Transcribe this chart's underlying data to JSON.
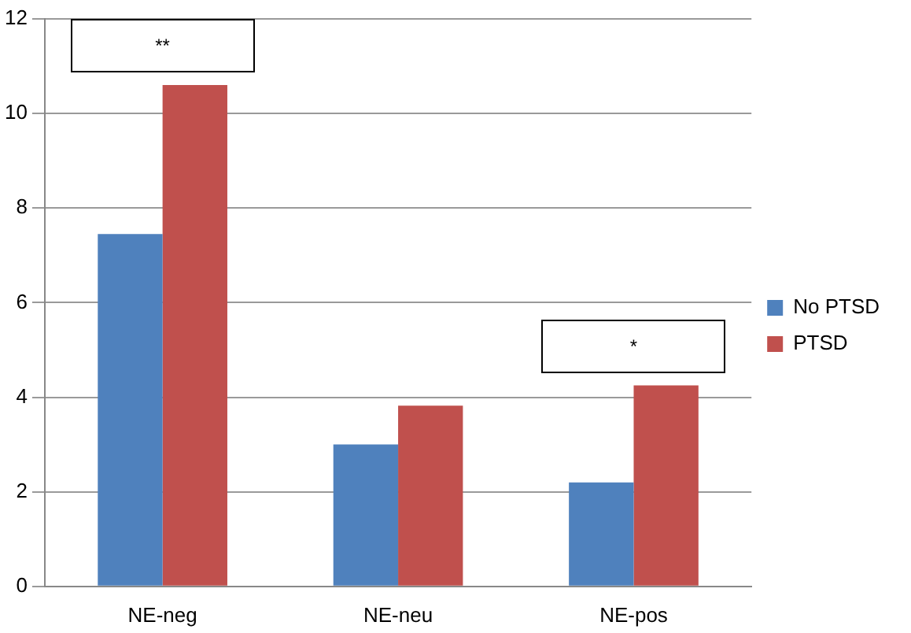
{
  "chart_data": {
    "type": "bar",
    "categories": [
      "NE-neg",
      "NE-neu",
      "NE-pos"
    ],
    "series": [
      {
        "name": "No PTSD",
        "color": "#4f81bd",
        "values": [
          7.45,
          3.0,
          2.2
        ]
      },
      {
        "name": "PTSD",
        "color": "#c0504d",
        "values": [
          10.6,
          3.82,
          4.25
        ]
      }
    ],
    "ylim": [
      0,
      12
    ],
    "yticks": [
      0,
      2,
      4,
      6,
      8,
      10,
      12
    ],
    "grid": "y",
    "legend": "right",
    "annotations": [
      "**",
      "*"
    ]
  }
}
